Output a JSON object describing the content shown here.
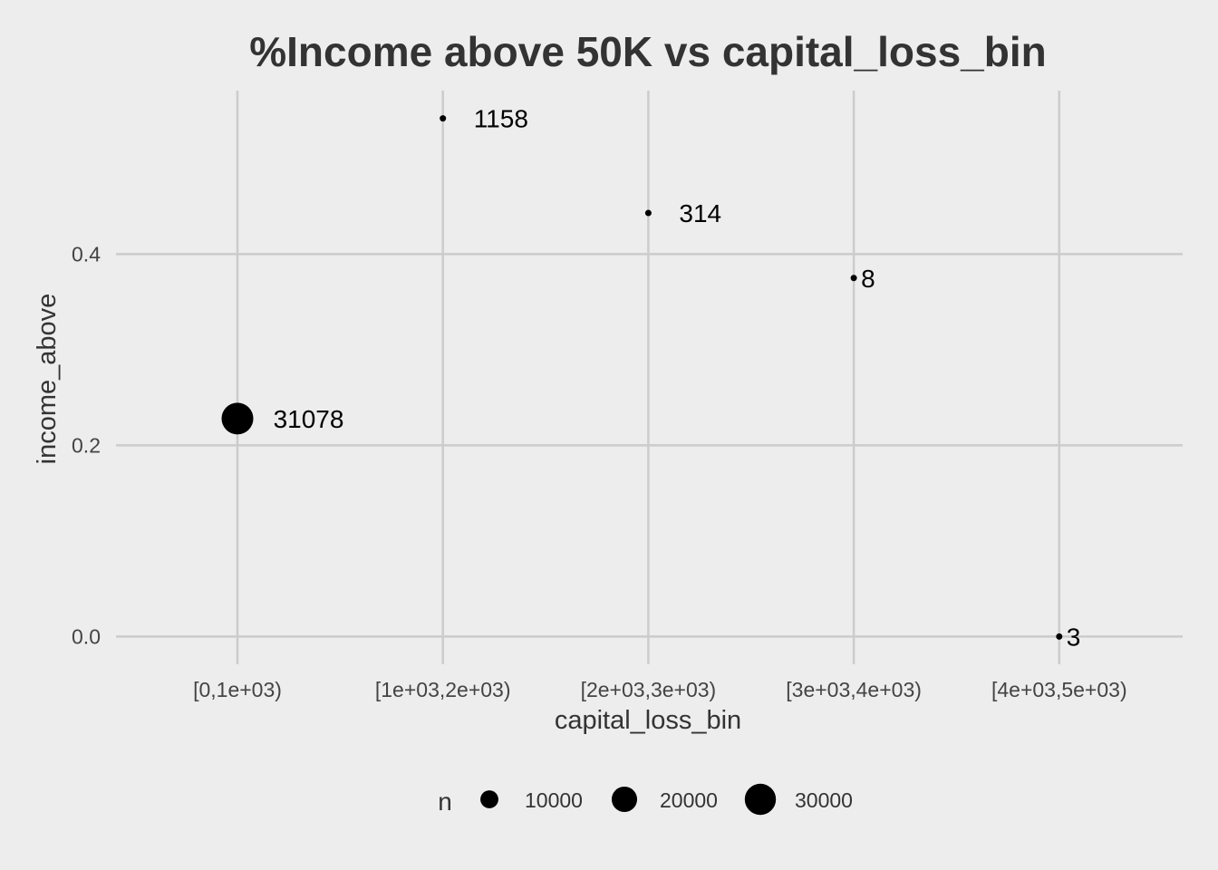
{
  "chart_data": {
    "type": "scatter",
    "title": "%Income above 50K vs capital_loss_bin",
    "xlabel": "capital_loss_bin",
    "ylabel": "income_above",
    "categories": [
      "[0,1e+03)",
      "[1e+03,2e+03)",
      "[2e+03,3e+03)",
      "[3e+03,4e+03)",
      "[4e+03,5e+03)"
    ],
    "points": [
      {
        "x": "[0,1e+03)",
        "y": 0.228,
        "n": 31078,
        "label": "31078"
      },
      {
        "x": "[1e+03,2e+03)",
        "y": 0.542,
        "n": 1158,
        "label": "1158"
      },
      {
        "x": "[2e+03,3e+03)",
        "y": 0.443,
        "n": 314,
        "label": "314"
      },
      {
        "x": "[3e+03,4e+03)",
        "y": 0.375,
        "n": 8,
        "label": "8"
      },
      {
        "x": "[4e+03,5e+03)",
        "y": 0.0,
        "n": 3,
        "label": "3"
      }
    ],
    "ylim": [
      -0.029,
      0.571
    ],
    "yticks": [
      0.0,
      0.2,
      0.4
    ],
    "ytick_labels": [
      "0.0",
      "0.2",
      "0.4"
    ],
    "grid": true,
    "legend": {
      "title": "n",
      "position": "bottom",
      "entries": [
        {
          "value": 10000,
          "label": "10000"
        },
        {
          "value": 20000,
          "label": "20000"
        },
        {
          "value": 30000,
          "label": "30000"
        }
      ]
    },
    "colors": {
      "background": "#ededed",
      "point": "#000000",
      "grid": "#cccccc"
    }
  }
}
